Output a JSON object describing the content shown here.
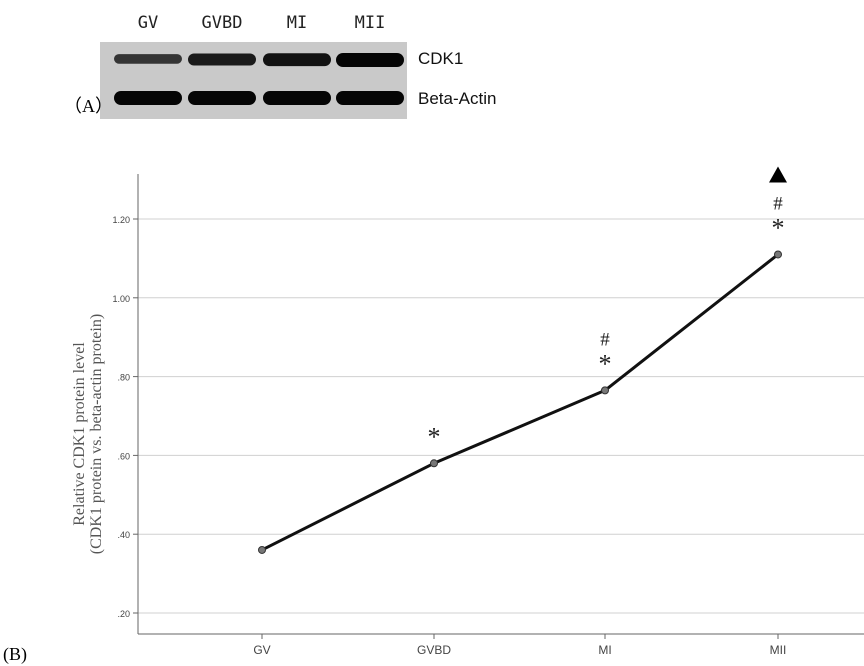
{
  "panel_a": {
    "label": "（A）",
    "lanes": [
      "GV",
      "GVBD",
      "MI",
      "MII"
    ],
    "rows": [
      {
        "name": "CDK1",
        "intensity": [
          0.45,
          0.75,
          0.85,
          1.0
        ]
      },
      {
        "name": "Beta-Actin",
        "intensity": [
          1.0,
          1.0,
          1.0,
          1.0
        ]
      }
    ]
  },
  "panel_b_label": "(B)",
  "chart_data": {
    "type": "line",
    "categories": [
      "GV",
      "GVBD",
      "MI",
      "MII"
    ],
    "series": [
      {
        "values": [
          0.36,
          0.58,
          0.765,
          1.11
        ]
      }
    ],
    "ylabel_line1": "Relative CDK1 protein level",
    "ylabel_line2": "(CDK1 protein vs. beta-actin protein)",
    "ylim": [
      0.17,
      1.25
    ],
    "yticks": [
      0.2,
      0.4,
      0.6,
      0.8,
      1.0,
      1.2
    ],
    "ytick_labels": [
      ".20",
      ".40",
      ".60",
      ".80",
      "1.00",
      "1.20"
    ],
    "grid": true,
    "annotations": [
      [],
      [
        "*"
      ],
      [
        "*",
        "#"
      ],
      [
        "*",
        "#",
        "▲"
      ]
    ]
  }
}
